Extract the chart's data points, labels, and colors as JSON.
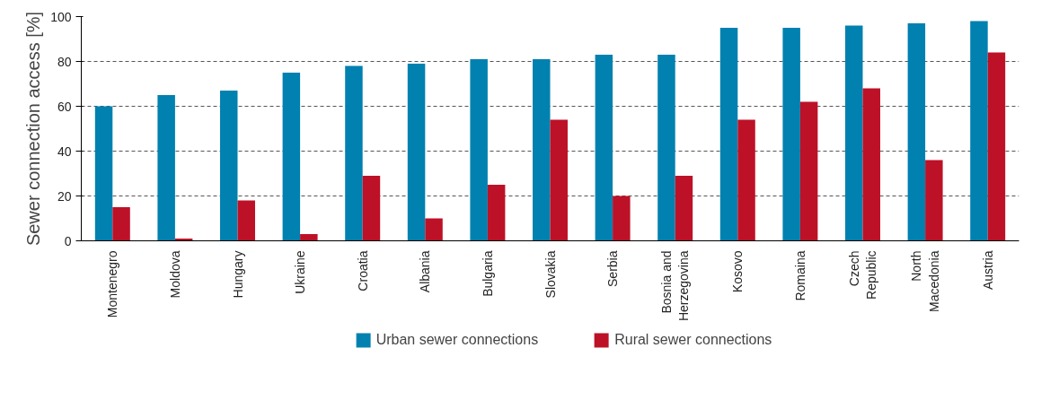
{
  "chart_data": {
    "type": "bar",
    "ylabel": "Sewer connection access [%]",
    "categories": [
      "Montenegro",
      "Moldova",
      "Hungary",
      "Ukraine",
      "Croatia",
      "Albania",
      "Bulgaria",
      "Slovakia",
      "Serbia",
      "Bosnia and\nHerzegovina",
      "Kosovo",
      "Romaina",
      "Czech\nRepublic",
      "North\nMacedonia",
      "Austria"
    ],
    "series": [
      {
        "name": "Urban sewer connections",
        "color": "#0081b0",
        "values": [
          60,
          65,
          67,
          75,
          78,
          79,
          81,
          81,
          83,
          83,
          95,
          95,
          96,
          97,
          98
        ]
      },
      {
        "name": "Rural sewer connections",
        "color": "#bd1127",
        "values": [
          15,
          1,
          18,
          3,
          29,
          10,
          25,
          54,
          20,
          29,
          54,
          62,
          68,
          36,
          84
        ]
      }
    ],
    "ylim": [
      0,
      100
    ],
    "yticks": [
      0,
      20,
      40,
      60,
      80,
      100
    ],
    "grid": "y",
    "legend": "bottom"
  }
}
